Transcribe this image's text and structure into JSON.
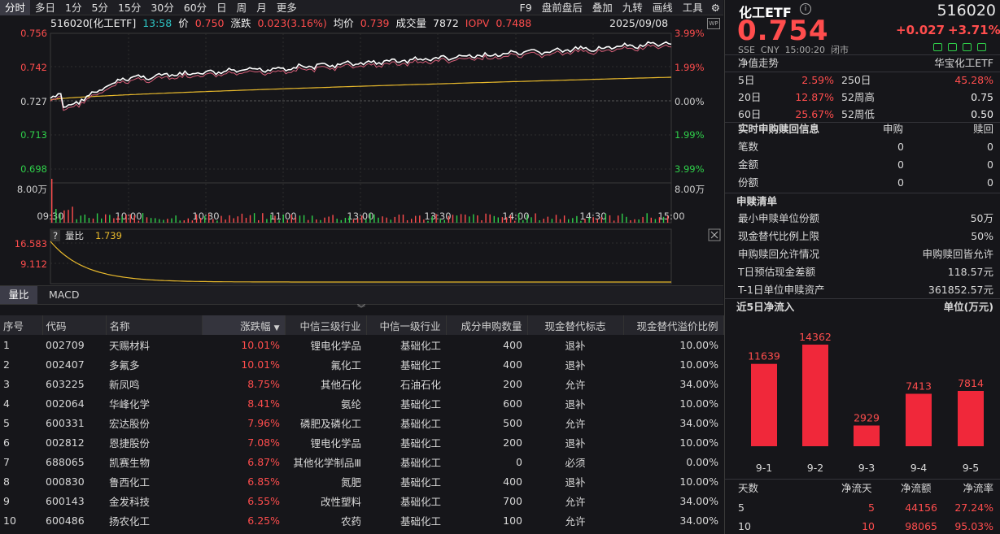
{
  "toolbar": {
    "left_tabs": [
      "分时",
      "多日",
      "1分",
      "5分",
      "15分",
      "30分",
      "60分",
      "日",
      "周",
      "月",
      "更多"
    ],
    "active": "分时",
    "right_tabs": [
      "F9",
      "盘前盘后",
      "叠加",
      "九转",
      "画线",
      "工具"
    ]
  },
  "chart": {
    "code_name": "516020[化工ETF]",
    "time": "13:58",
    "price_label": "价",
    "price": "0.750",
    "change_label": "涨跌",
    "change": "0.023(3.16%)",
    "avg_label": "均价",
    "avg": "0.739",
    "vol_label": "成交量",
    "vol": "7872",
    "iopv_label": "IOPV",
    "iopv": "0.7488",
    "date": "2025/09/08",
    "left_ticks": [
      "0.756",
      "0.742",
      "0.727",
      "0.713",
      "0.698"
    ],
    "right_ticks": [
      "3.99%",
      "1.99%",
      "0.00%",
      "1.99%",
      "3.99%"
    ],
    "vol_tick": "8.00万",
    "x_ticks": [
      "09:30",
      "10:00",
      "10:30",
      "11:00",
      "13:00",
      "13:30",
      "14:00",
      "14:30",
      "15:00"
    ]
  },
  "sub_chart": {
    "help": "?",
    "name": "量比",
    "value": "1.739",
    "ticks": [
      "16.583",
      "9.112"
    ]
  },
  "indicator_tabs": [
    "量比",
    "MACD"
  ],
  "table": {
    "headers": [
      "序号",
      "代码",
      "名称",
      "涨跌幅",
      "中信三级行业",
      "中信一级行业",
      "成分申购数量",
      "现金替代标志",
      "现金替代溢价比例"
    ],
    "sort_icon": "▼",
    "rows": [
      [
        "1",
        "002709",
        "天赐材料",
        "10.01%",
        "锂电化学品",
        "基础化工",
        "400",
        "退补",
        "10.00%"
      ],
      [
        "2",
        "002407",
        "多氟多",
        "10.01%",
        "氟化工",
        "基础化工",
        "400",
        "退补",
        "10.00%"
      ],
      [
        "3",
        "603225",
        "新凤鸣",
        "8.75%",
        "其他石化",
        "石油石化",
        "200",
        "允许",
        "34.00%"
      ],
      [
        "4",
        "002064",
        "华峰化学",
        "8.41%",
        "氨纶",
        "基础化工",
        "600",
        "退补",
        "10.00%"
      ],
      [
        "5",
        "600331",
        "宏达股份",
        "7.96%",
        "磷肥及磷化工",
        "基础化工",
        "500",
        "允许",
        "34.00%"
      ],
      [
        "6",
        "002812",
        "恩捷股份",
        "7.08%",
        "锂电化学品",
        "基础化工",
        "200",
        "退补",
        "10.00%"
      ],
      [
        "7",
        "688065",
        "凯赛生物",
        "6.87%",
        "其他化学制品Ⅲ",
        "基础化工",
        "0",
        "必须",
        "0.00%"
      ],
      [
        "8",
        "000830",
        "鲁西化工",
        "6.85%",
        "氮肥",
        "基础化工",
        "400",
        "退补",
        "10.00%"
      ],
      [
        "9",
        "600143",
        "金发科技",
        "6.55%",
        "改性塑料",
        "基础化工",
        "700",
        "允许",
        "34.00%"
      ],
      [
        "10",
        "600486",
        "扬农化工",
        "6.25%",
        "农药",
        "基础化工",
        "100",
        "允许",
        "34.00%"
      ]
    ]
  },
  "right": {
    "name": "化工ETF",
    "code": "516020",
    "price": "0.754",
    "change": "+0.027",
    "change_pct": "+3.71%",
    "market": "SSE",
    "currency": "CNY",
    "time": "15:00:20",
    "status": "闭市",
    "nav_label": "净值走势",
    "fund_name": "华宝化工ETF",
    "perf": [
      {
        "l1": "5日",
        "v1": "2.59%",
        "l2": "250日",
        "v2": "45.28%"
      },
      {
        "l1": "20日",
        "v1": "12.87%",
        "l2": "52周高",
        "v2": "0.75"
      },
      {
        "l1": "60日",
        "v1": "25.67%",
        "l2": "52周低",
        "v2": "0.50"
      }
    ],
    "realtime": {
      "title": "实时申购赎回信息",
      "col1": "申购",
      "col2": "赎回",
      "rows": [
        {
          "label": "笔数",
          "a": "0",
          "b": "0"
        },
        {
          "label": "金额",
          "a": "0",
          "b": "0"
        },
        {
          "label": "份额",
          "a": "0",
          "b": "0"
        }
      ]
    },
    "list": {
      "title": "申赎清单",
      "rows": [
        {
          "label": "最小申赎单位份额",
          "value": "50万"
        },
        {
          "label": "现金替代比例上限",
          "value": "50%"
        },
        {
          "label": "申购赎回允许情况",
          "value": "申购赎回皆允许"
        },
        {
          "label": "T日预估现金差额",
          "value": "118.57元"
        },
        {
          "label": "T-1日单位申赎资产",
          "value": "361852.57元"
        }
      ]
    },
    "flow": {
      "title": "近5日净流入",
      "unit": "单位(万元)",
      "chart_data": {
        "type": "bar",
        "categories": [
          "9-1",
          "9-2",
          "9-3",
          "9-4",
          "9-5"
        ],
        "values": [
          11639,
          14362,
          2929,
          7413,
          7814
        ]
      }
    },
    "stats": {
      "headers": [
        "天数",
        "净流天",
        "净流额",
        "净流率"
      ],
      "rows": [
        [
          "5",
          "5",
          "44156",
          "27.24%"
        ],
        [
          "10",
          "10",
          "98065",
          "95.03%"
        ]
      ]
    }
  }
}
